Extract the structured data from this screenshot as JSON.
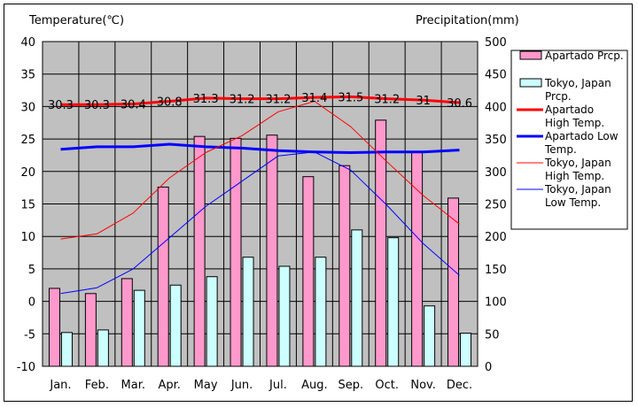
{
  "chart_data": {
    "type": "bar+line",
    "y_left_label": "Temperature(℃)",
    "y_right_label": "Precipitation(mm)",
    "categories": [
      "Jan.",
      "Feb.",
      "Mar.",
      "Apr.",
      "May",
      "Jun.",
      "Jul.",
      "Aug.",
      "Sep.",
      "Oct.",
      "Nov.",
      "Dec."
    ],
    "y_left_ticks": [
      -10,
      -5,
      0,
      5,
      10,
      15,
      20,
      25,
      30,
      35,
      40
    ],
    "y_right_ticks": [
      0,
      50,
      100,
      150,
      200,
      250,
      300,
      350,
      400,
      450,
      500
    ],
    "ylim_left": [
      -10,
      40
    ],
    "ylim_right": [
      0,
      500
    ],
    "grid": true,
    "legend_position": "right",
    "precipitation": [
      {
        "name": "Apartado Prcp.",
        "color": "#ff99cc",
        "values": [
          120,
          112,
          135,
          276,
          354,
          351,
          356,
          292,
          309,
          379,
          330,
          259
        ]
      },
      {
        "name": "Tokyo, Japan Prcp.",
        "color": "#ccffff",
        "values": [
          52,
          56,
          117,
          125,
          138,
          168,
          154,
          168,
          210,
          198,
          93,
          51
        ]
      }
    ],
    "temperature": [
      {
        "name": "Apartado High Temp.",
        "color": "#ff0000",
        "width": "thick",
        "values": [
          30.3,
          30.3,
          30.4,
          30.8,
          31.3,
          31.2,
          31.2,
          31.4,
          31.5,
          31.2,
          31.0,
          30.6
        ],
        "labels": [
          "30.3",
          "30.3",
          "30.4",
          "30.8",
          "31.3",
          "31.2",
          "31.2",
          "31.4",
          "31.5",
          "31.2",
          "31",
          "30.6"
        ]
      },
      {
        "name": "Apartado Low Temp.",
        "color": "#0000ff",
        "width": "thick",
        "values": [
          23.4,
          23.8,
          23.8,
          24.2,
          23.8,
          23.6,
          23.2,
          23.0,
          22.9,
          23.0,
          23.0,
          23.3
        ]
      },
      {
        "name": "Tokyo, Japan High Temp.",
        "color": "#ff0000",
        "width": "thin",
        "values": [
          9.6,
          10.4,
          13.6,
          19.0,
          22.9,
          25.5,
          29.2,
          30.8,
          26.9,
          21.5,
          16.3,
          11.9
        ]
      },
      {
        "name": "Tokyo, Japan Low Temp.",
        "color": "#0000ff",
        "width": "thin",
        "values": [
          1.2,
          2.1,
          5.0,
          9.8,
          14.6,
          18.5,
          22.4,
          23.0,
          20.2,
          14.8,
          8.9,
          4.0
        ]
      }
    ]
  },
  "legend": [
    {
      "label": "Apartado Prcp.",
      "kind": "box",
      "color": "#ff99cc"
    },
    {
      "label": "Tokyo, Japan Prcp.",
      "kind": "box",
      "color": "#ccffff"
    },
    {
      "label": "Apartado High Temp.",
      "kind": "line",
      "color": "#ff0000",
      "width": "thick"
    },
    {
      "label": "Apartado Low Temp.",
      "kind": "line",
      "color": "#0000ff",
      "width": "thick"
    },
    {
      "label": "Tokyo, Japan High Temp.",
      "kind": "line",
      "color": "#ff0000",
      "width": "thin"
    },
    {
      "label": "Tokyo, Japan Low Temp.",
      "kind": "line",
      "color": "#0000ff",
      "width": "thin"
    }
  ],
  "colors": {
    "plot_bg": "#c0c0c0",
    "grid": "#000000"
  }
}
